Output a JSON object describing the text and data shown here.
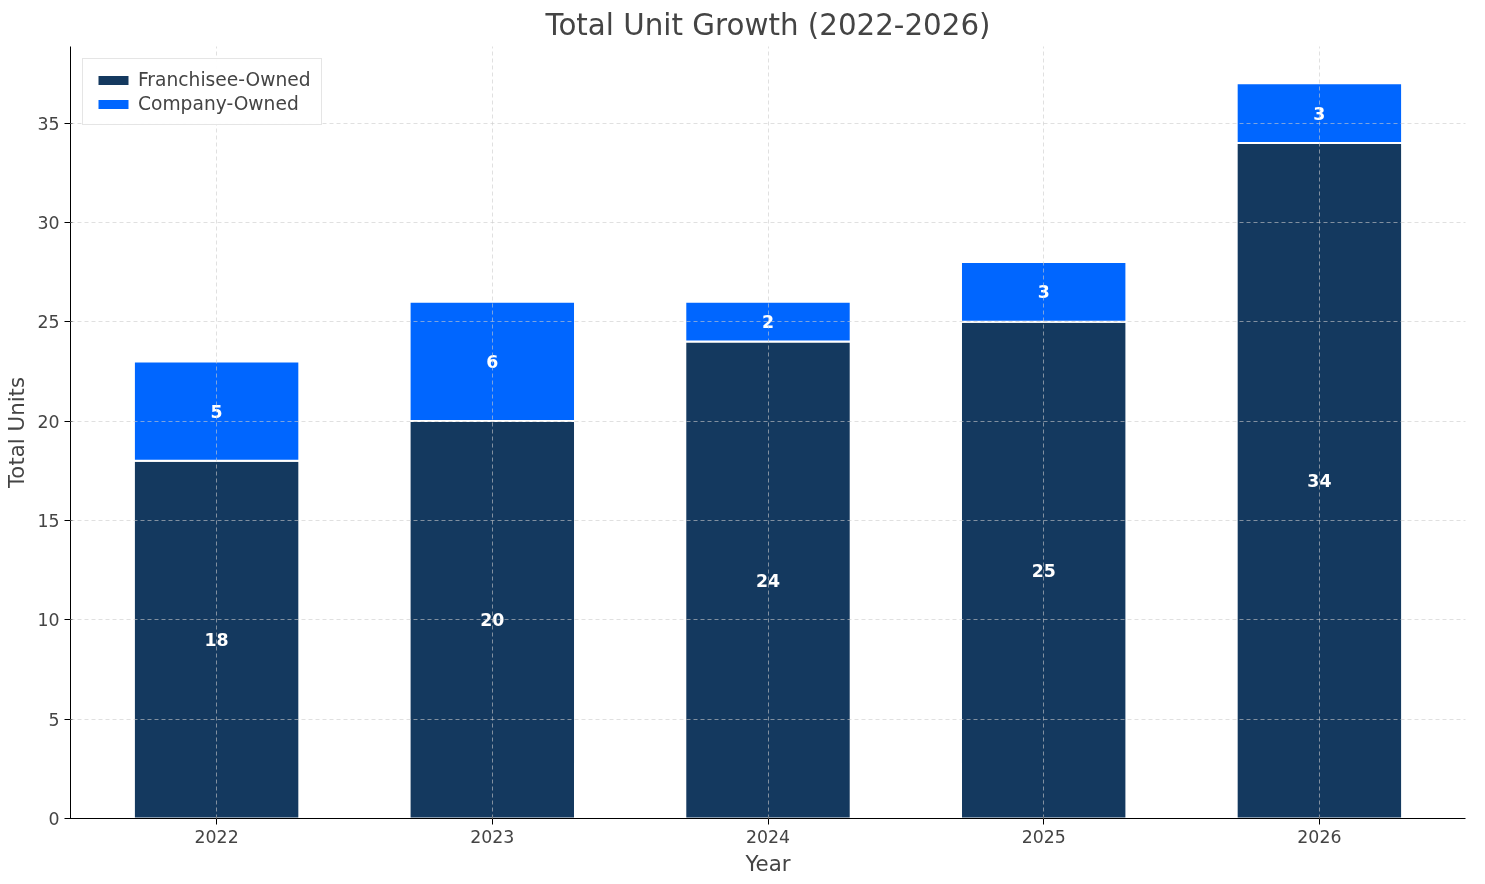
{
  "chart_data": {
    "type": "bar",
    "title": "Total Unit Growth (2022-2026)",
    "xlabel": "Year",
    "ylabel": "Total Units",
    "categories": [
      "2022",
      "2023",
      "2024",
      "2025",
      "2026"
    ],
    "series": [
      {
        "name": "Franchisee-Owned",
        "color": "#14395f",
        "values": [
          18,
          20,
          24,
          25,
          34
        ]
      },
      {
        "name": "Company-Owned",
        "color": "#0066ff",
        "values": [
          5,
          6,
          2,
          3,
          3
        ]
      }
    ],
    "stacked": true,
    "ylim": [
      0,
      38.85
    ],
    "yticks": [
      0,
      5,
      10,
      15,
      20,
      25,
      30,
      35
    ],
    "grid": true,
    "legend": "top left",
    "data_labels": true
  }
}
